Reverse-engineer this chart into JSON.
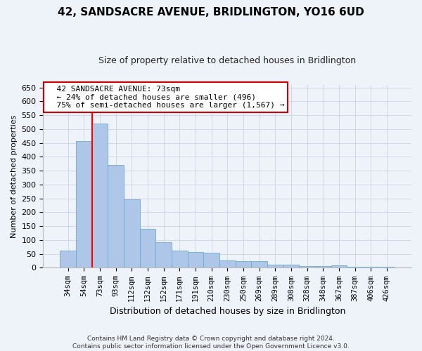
{
  "title": "42, SANDSACRE AVENUE, BRIDLINGTON, YO16 6UD",
  "subtitle": "Size of property relative to detached houses in Bridlington",
  "xlabel": "Distribution of detached houses by size in Bridlington",
  "ylabel": "Number of detached properties",
  "categories": [
    "34sqm",
    "54sqm",
    "73sqm",
    "93sqm",
    "112sqm",
    "132sqm",
    "152sqm",
    "171sqm",
    "191sqm",
    "210sqm",
    "230sqm",
    "250sqm",
    "269sqm",
    "289sqm",
    "308sqm",
    "328sqm",
    "348sqm",
    "367sqm",
    "387sqm",
    "406sqm",
    "426sqm"
  ],
  "values": [
    62,
    457,
    520,
    370,
    247,
    140,
    92,
    62,
    57,
    55,
    26,
    25,
    25,
    11,
    11,
    6,
    5,
    9,
    3,
    4,
    3
  ],
  "bar_color": "#aec6e8",
  "bar_edge_color": "#6aaad4",
  "grid_color": "#d0d8e8",
  "bg_color": "#eef2f9",
  "red_line_x": 1.5,
  "annotation_text": "  42 SANDSACRE AVENUE: 73sqm\n  ← 24% of detached houses are smaller (496)\n  75% of semi-detached houses are larger (1,567) →",
  "annotation_box_color": "#ffffff",
  "annotation_box_edge": "#cc0000",
  "footer": "Contains HM Land Registry data © Crown copyright and database right 2024.\nContains public sector information licensed under the Open Government Licence v3.0.",
  "ylim": [
    0,
    660
  ],
  "yticks": [
    0,
    50,
    100,
    150,
    200,
    250,
    300,
    350,
    400,
    450,
    500,
    550,
    600,
    650
  ],
  "title_fontsize": 11,
  "subtitle_fontsize": 9,
  "ylabel_fontsize": 8,
  "xlabel_fontsize": 9,
  "tick_fontsize": 8,
  "xtick_fontsize": 7.5,
  "footer_fontsize": 6.5,
  "annot_fontsize": 8
}
